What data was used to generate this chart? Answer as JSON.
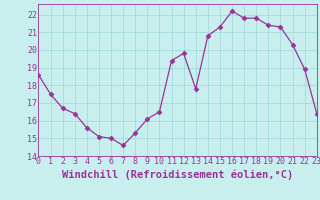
{
  "x": [
    0,
    1,
    2,
    3,
    4,
    5,
    6,
    7,
    8,
    9,
    10,
    11,
    12,
    13,
    14,
    15,
    16,
    17,
    18,
    19,
    20,
    21,
    22,
    23
  ],
  "y": [
    18.6,
    17.5,
    16.7,
    16.4,
    15.6,
    15.1,
    15.0,
    14.6,
    15.3,
    16.1,
    16.5,
    19.4,
    19.8,
    17.8,
    20.8,
    21.3,
    22.2,
    21.8,
    21.8,
    21.4,
    21.3,
    20.3,
    18.9,
    16.4
  ],
  "xlim": [
    0,
    23
  ],
  "ylim": [
    14,
    22.6
  ],
  "yticks": [
    14,
    15,
    16,
    17,
    18,
    19,
    20,
    21,
    22
  ],
  "xticks": [
    0,
    1,
    2,
    3,
    4,
    5,
    6,
    7,
    8,
    9,
    10,
    11,
    12,
    13,
    14,
    15,
    16,
    17,
    18,
    19,
    20,
    21,
    22,
    23
  ],
  "xlabel": "Windchill (Refroidissement éolien,°C)",
  "line_color": "#993399",
  "marker": "D",
  "marker_size": 2.5,
  "bg_color": "#c8eeee",
  "grid_color": "#aadddd",
  "font_color": "#993399",
  "tick_label_size": 6,
  "xlabel_size": 7.5
}
